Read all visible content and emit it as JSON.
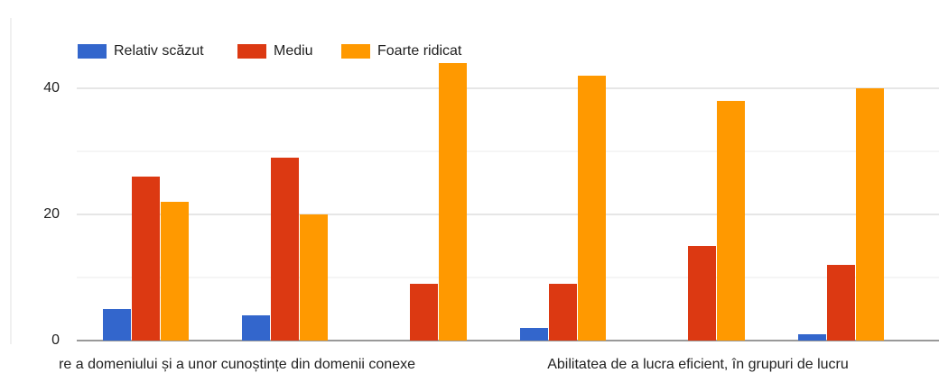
{
  "chart_data": {
    "type": "bar",
    "categories": [
      null,
      "re a domeniului și a unor cunoștințe din domenii conexe",
      null,
      null,
      "Abilitatea de a lucra eficient, în grupuri de lucru",
      null
    ],
    "series": [
      {
        "name": "Relativ scăzut",
        "color": "#3366cc",
        "values": [
          5,
          4,
          0,
          2,
          0,
          1
        ]
      },
      {
        "name": "Mediu",
        "color": "#dc3912",
        "values": [
          26,
          29,
          9,
          9,
          15,
          12
        ]
      },
      {
        "name": "Foarte ridicat",
        "color": "#ff9900",
        "values": [
          22,
          20,
          44,
          42,
          38,
          40
        ]
      }
    ],
    "ylim": [
      0,
      46
    ],
    "yticks": [
      0,
      20,
      40
    ],
    "minor_yticks": [
      10,
      30
    ],
    "grid": true,
    "legend": "top-left"
  }
}
